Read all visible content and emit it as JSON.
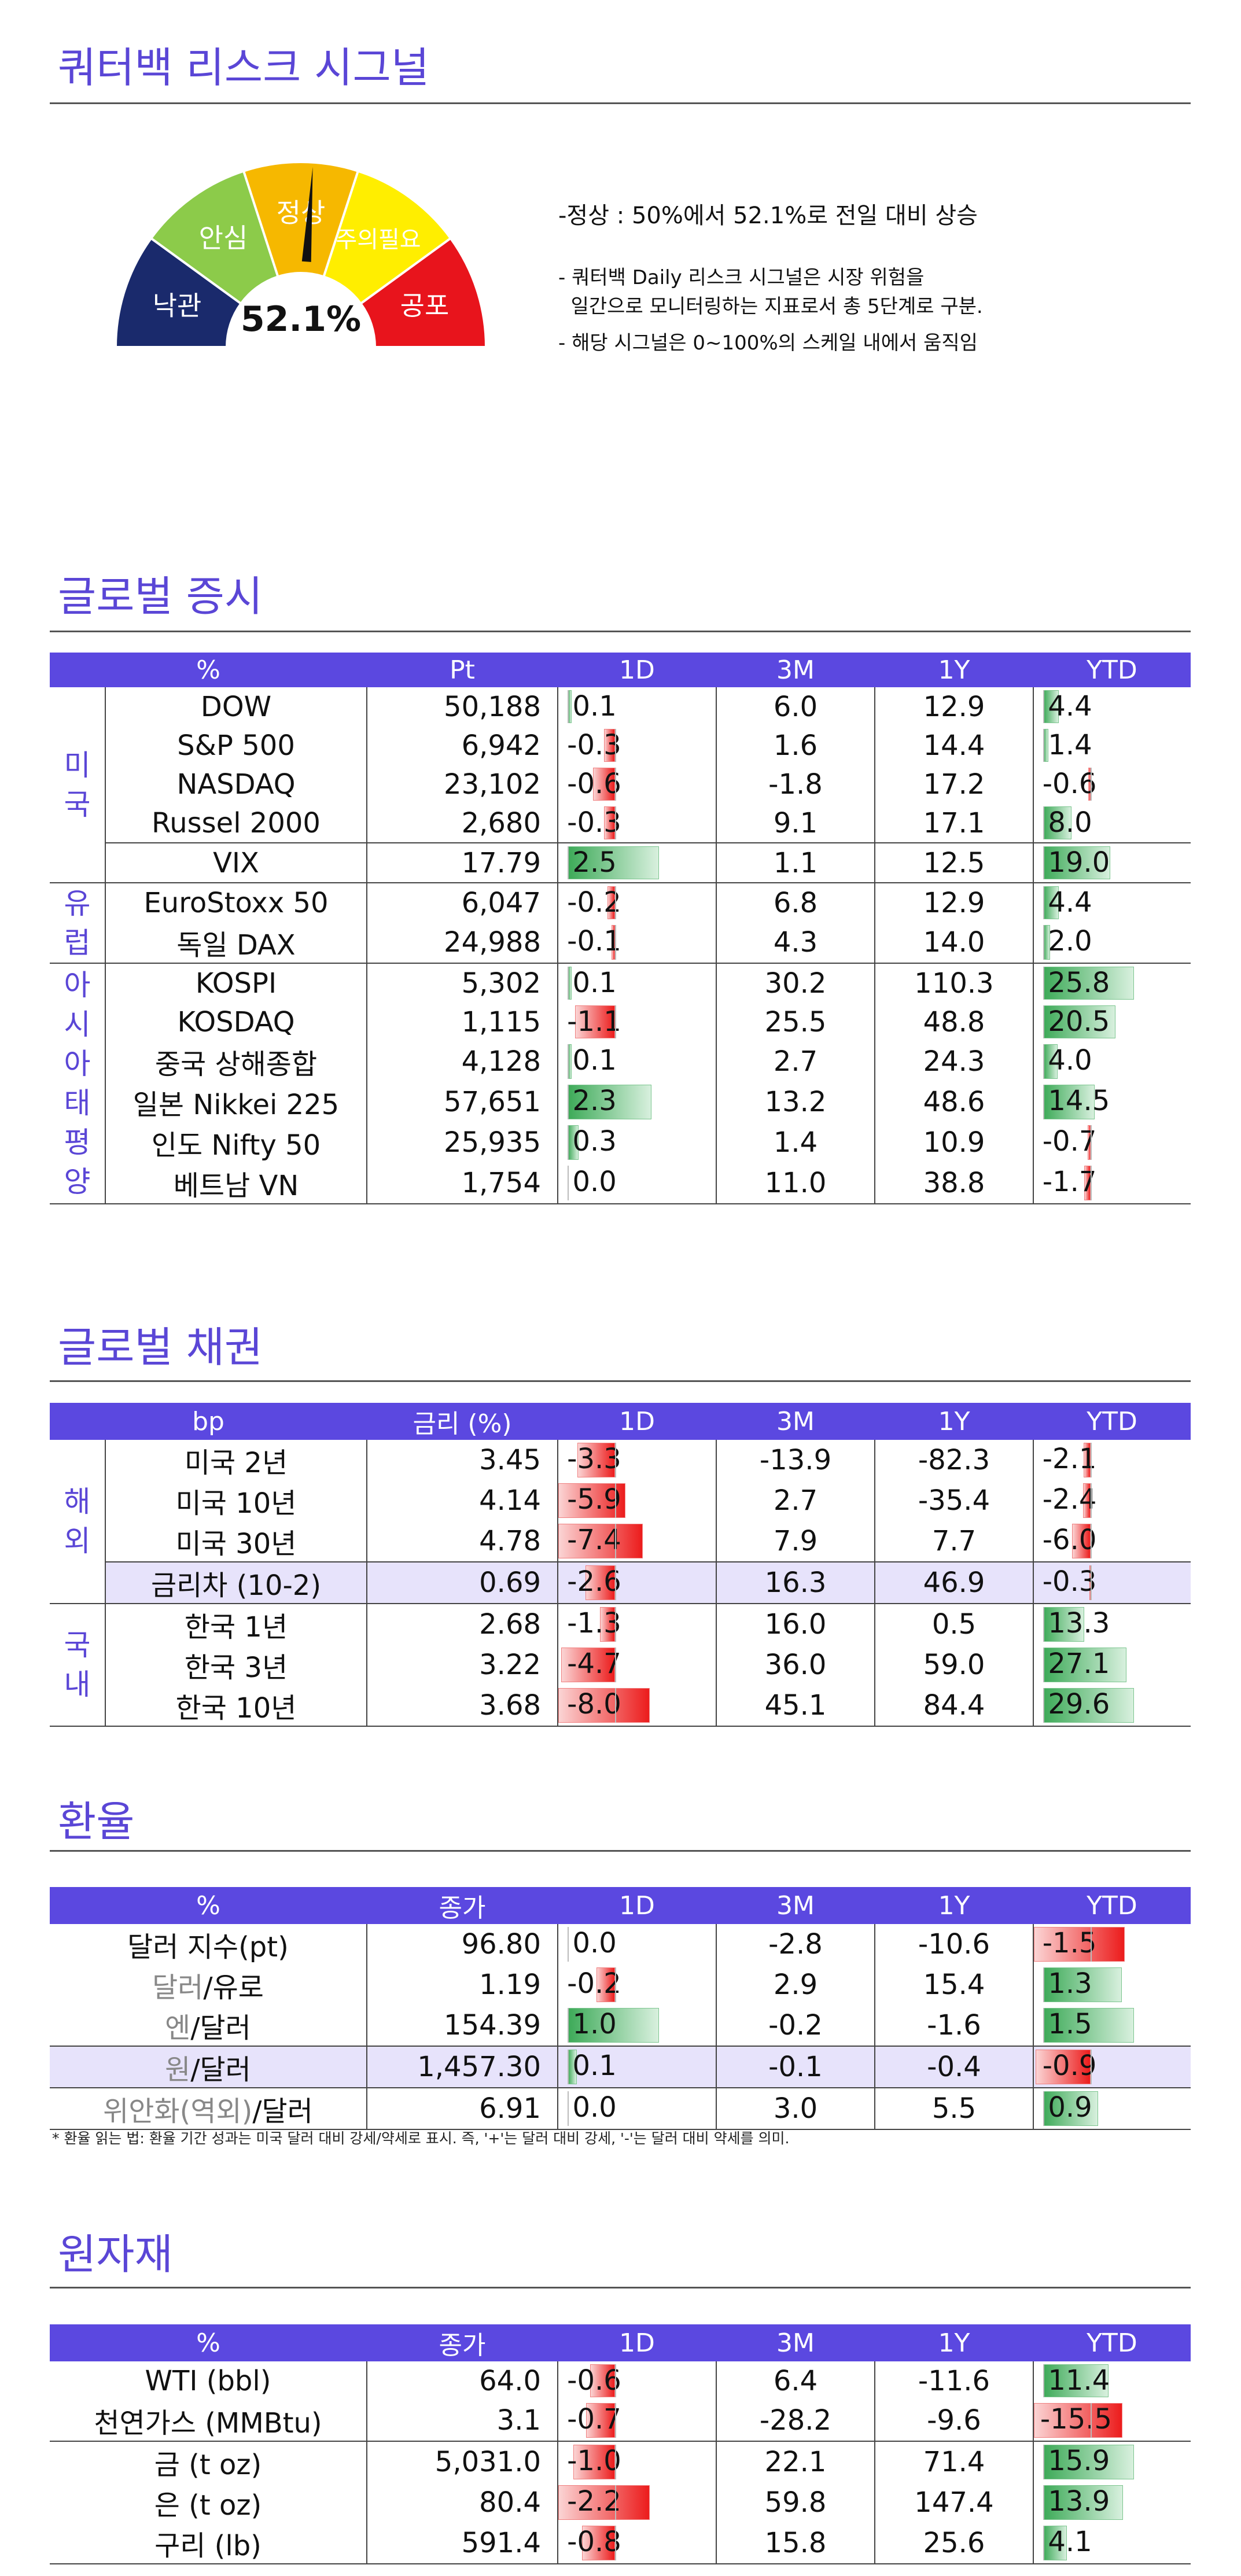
{
  "risk": {
    "title": "쿼터백 리스크 시그널",
    "value": "52.1%",
    "value_pct": 52.1,
    "segments": [
      {
        "label": "낙관",
        "color": "#1a2a6c"
      },
      {
        "label": "안심",
        "color": "#8ccb4a"
      },
      {
        "label": "정상",
        "color": "#f6b800"
      },
      {
        "label": "주의필요",
        "color": "#ffee00"
      },
      {
        "label": "공포",
        "color": "#e8141c"
      }
    ],
    "summary": "-정상 : 50%에서 52.1%로 전일 대비 상승",
    "note1": "- 쿼터백 Daily 리스크 시그널은 시장 위험을",
    "note2": "  일간으로 모니터링하는 지표로서 총 5단계로 구분.",
    "note3": "- 해당 시그널은 0~100%의 스케일 내에서 움직임"
  },
  "stocks": {
    "title": "글로벌 증시",
    "headers": [
      "%",
      "Pt",
      "1D",
      "3M",
      "1Y",
      "YTD"
    ],
    "groups": [
      {
        "name": "미국",
        "vchars": [
          "미",
          "국"
        ],
        "rows": [
          {
            "name": "DOW",
            "pt": "50,188",
            "d1": "0.1",
            "m3": "6.0",
            "y1": "12.9",
            "ytd": "4.4"
          },
          {
            "name": "S&P 500",
            "pt": "6,942",
            "d1": "-0.3",
            "m3": "1.6",
            "y1": "14.4",
            "ytd": "1.4"
          },
          {
            "name": "NASDAQ",
            "pt": "23,102",
            "d1": "-0.6",
            "m3": "-1.8",
            "y1": "17.2",
            "ytd": "-0.6"
          },
          {
            "name": "Russel 2000",
            "pt": "2,680",
            "d1": "-0.3",
            "m3": "9.1",
            "y1": "17.1",
            "ytd": "8.0"
          },
          {
            "name": "VIX",
            "pt": "17.79",
            "d1": "2.5",
            "m3": "1.1",
            "y1": "12.5",
            "ytd": "19.0"
          }
        ]
      },
      {
        "name": "유럽",
        "vchars": [
          "유",
          "럽"
        ],
        "rows": [
          {
            "name": "EuroStoxx 50",
            "pt": "6,047",
            "d1": "-0.2",
            "m3": "6.8",
            "y1": "12.9",
            "ytd": "4.4"
          },
          {
            "name": "독일 DAX",
            "pt": "24,988",
            "d1": "-0.1",
            "m3": "4.3",
            "y1": "14.0",
            "ytd": "2.0"
          }
        ]
      },
      {
        "name": "아시아태평양",
        "vchars": [
          "아",
          "시",
          "아",
          "태",
          "평",
          "양"
        ],
        "rows": [
          {
            "name": "KOSPI",
            "pt": "5,302",
            "d1": "0.1",
            "m3": "30.2",
            "y1": "110.3",
            "ytd": "25.8"
          },
          {
            "name": "KOSDAQ",
            "pt": "1,115",
            "d1": "-1.1",
            "m3": "25.5",
            "y1": "48.8",
            "ytd": "20.5"
          },
          {
            "name": "중국 상해종합",
            "pt": "4,128",
            "d1": "0.1",
            "m3": "2.7",
            "y1": "24.3",
            "ytd": "4.0"
          },
          {
            "name": "일본 Nikkei 225",
            "pt": "57,651",
            "d1": "2.3",
            "m3": "13.2",
            "y1": "48.6",
            "ytd": "14.5"
          },
          {
            "name": "인도 Nifty 50",
            "pt": "25,935",
            "d1": "0.3",
            "m3": "1.4",
            "y1": "10.9",
            "ytd": "-0.7"
          },
          {
            "name": "베트남 VN",
            "pt": "1,754",
            "d1": "0.0",
            "m3": "11.0",
            "y1": "38.8",
            "ytd": "-1.7"
          }
        ]
      }
    ]
  },
  "bonds": {
    "title": "글로벌 채권",
    "headers": [
      "bp",
      "금리 (%)",
      "1D",
      "3M",
      "1Y",
      "YTD"
    ],
    "groups": [
      {
        "name": "해외",
        "vchars": [
          "해",
          "외"
        ],
        "rows": [
          {
            "name": "미국 2년",
            "pt": "3.45",
            "d1": "-3.3",
            "m3": "-13.9",
            "y1": "-82.3",
            "ytd": "-2.1"
          },
          {
            "name": "미국 10년",
            "pt": "4.14",
            "d1": "-5.9",
            "m3": "2.7",
            "y1": "-35.4",
            "ytd": "-2.4"
          },
          {
            "name": "미국 30년",
            "pt": "4.78",
            "d1": "-7.4",
            "m3": "7.9",
            "y1": "7.7",
            "ytd": "-6.0"
          },
          {
            "name": "금리차 (10-2)",
            "pt": "0.69",
            "d1": "-2.6",
            "m3": "16.3",
            "y1": "46.9",
            "ytd": "-0.3"
          }
        ]
      },
      {
        "name": "국내",
        "vchars": [
          "국",
          "내"
        ],
        "rows": [
          {
            "name": "한국 1년",
            "pt": "2.68",
            "d1": "-1.3",
            "m3": "16.0",
            "y1": "0.5",
            "ytd": "13.3"
          },
          {
            "name": "한국 3년",
            "pt": "3.22",
            "d1": "-4.7",
            "m3": "36.0",
            "y1": "59.0",
            "ytd": "27.1"
          },
          {
            "name": "한국 10년",
            "pt": "3.68",
            "d1": "-8.0",
            "m3": "45.1",
            "y1": "84.4",
            "ytd": "29.6"
          }
        ]
      }
    ]
  },
  "fx": {
    "title": "환율",
    "headers": [
      "%",
      "종가",
      "1D",
      "3M",
      "1Y",
      "YTD"
    ],
    "rows": [
      {
        "name": "달러 지수(pt)",
        "pt": "96.80",
        "d1": "0.0",
        "m3": "-2.8",
        "y1": "-10.6",
        "ytd": "-1.5"
      },
      {
        "name_a": "달러",
        "name_b": "/유로",
        "pt": "1.19",
        "d1": "-0.2",
        "m3": "2.9",
        "y1": "15.4",
        "ytd": "1.3"
      },
      {
        "name_a": "엔",
        "name_b": "/달러",
        "pt": "154.39",
        "d1": "1.0",
        "m3": "-0.2",
        "y1": "-1.6",
        "ytd": "1.5"
      },
      {
        "name_a": "원",
        "name_b": "/달러",
        "pt": "1,457.30",
        "d1": "0.1",
        "m3": "-0.1",
        "y1": "-0.4",
        "ytd": "-0.9"
      },
      {
        "name_a": "위안화(역외)",
        "name_b": "/달러",
        "pt": "6.91",
        "d1": "0.0",
        "m3": "3.0",
        "y1": "5.5",
        "ytd": "0.9"
      }
    ],
    "footnote": "* 환율 읽는 법: 환율 기간 성과는 미국 달러 대비 강세/약세로 표시. 즉, '+'는 달러 대비 강세, '-'는 달러 대비 약세를 의미."
  },
  "commod": {
    "title": "원자재",
    "headers": [
      "%",
      "종가",
      "1D",
      "3M",
      "1Y",
      "YTD"
    ],
    "rows": [
      {
        "name": "WTI (bbl)",
        "pt": "64.0",
        "d1": "-0.6",
        "m3": "6.4",
        "y1": "-11.6",
        "ytd": "11.4"
      },
      {
        "name": "천연가스 (MMBtu)",
        "pt": "3.1",
        "d1": "-0.7",
        "m3": "-28.2",
        "y1": "-9.6",
        "ytd": "-15.5"
      },
      {
        "name": "금 (t oz)",
        "pt": "5,031.0",
        "d1": "-1.0",
        "m3": "22.1",
        "y1": "71.4",
        "ytd": "15.9"
      },
      {
        "name": "은 (t oz)",
        "pt": "80.4",
        "d1": "-2.2",
        "m3": "59.8",
        "y1": "147.4",
        "ytd": "13.9"
      },
      {
        "name": "구리 (lb)",
        "pt": "591.4",
        "d1": "-0.8",
        "m3": "15.8",
        "y1": "25.6",
        "ytd": "4.1"
      }
    ]
  }
}
